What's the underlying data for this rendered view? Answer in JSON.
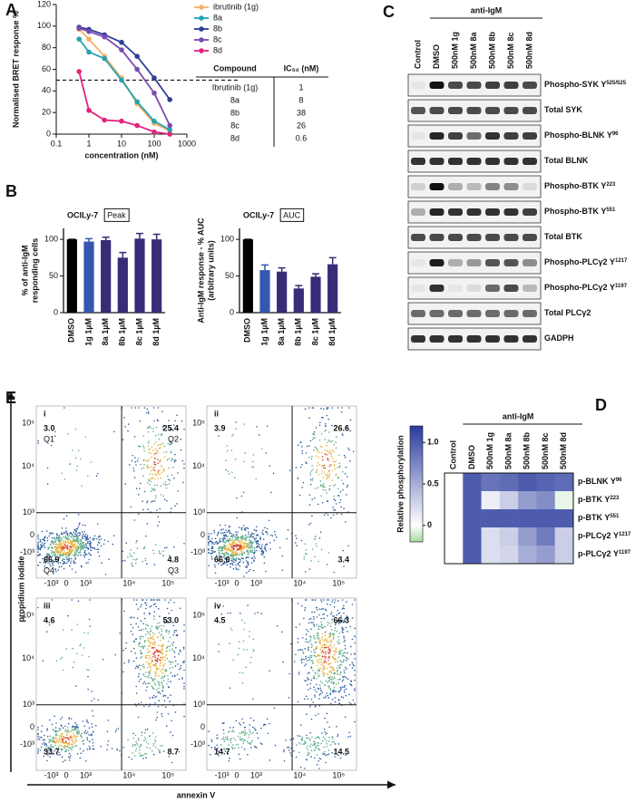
{
  "panel_labels": [
    "A",
    "B",
    "C",
    "D",
    "E"
  ],
  "chart_data": [
    {
      "type": "line",
      "y_label": "Normalised BRET response %",
      "x_label": "concentration (nM)",
      "x_scale": "log",
      "x": [
        0.5,
        1,
        3,
        10,
        30,
        100,
        300
      ],
      "series": [
        {
          "name": "ibrutinib (1g)",
          "color": "#f4b16a",
          "values": [
            97,
            88,
            72,
            52,
            28,
            10,
            3
          ]
        },
        {
          "name": "8a",
          "color": "#22a3b3",
          "values": [
            88,
            76,
            70,
            50,
            30,
            12,
            4
          ]
        },
        {
          "name": "8b",
          "color": "#2f3f95",
          "values": [
            99,
            97,
            92,
            85,
            72,
            52,
            32
          ]
        },
        {
          "name": "8c",
          "color": "#7b4bb1",
          "values": [
            98,
            95,
            90,
            78,
            60,
            38,
            8
          ]
        },
        {
          "name": "8d",
          "color": "#e2247e",
          "values": [
            58,
            22,
            13,
            12,
            8,
            2,
            0
          ]
        }
      ],
      "reference_line": 50,
      "xlim": [
        0.1,
        1000
      ],
      "xticks": [
        0.1,
        1,
        10,
        100,
        1000
      ],
      "ylim": [
        0,
        120
      ],
      "yticks": [
        0,
        20,
        40,
        60,
        80,
        100,
        120
      ]
    },
    {
      "type": "bar",
      "title": "OCILy-7",
      "tag": "Peak",
      "y_label": [
        "% of anti-IgM",
        "responding cells"
      ],
      "categories": [
        "DMSO",
        "1g 1µM",
        "8a 1µM",
        "8b 1µM",
        "8c 1µM",
        "8d 1µM"
      ],
      "values": [
        100,
        97,
        99,
        75,
        101,
        100
      ],
      "errors": [
        0,
        4,
        4,
        7,
        7,
        7
      ],
      "colors": [
        "#000000",
        "#3656b0",
        "#3a2b78",
        "#3a2b78",
        "#3a2b78",
        "#3a2b78"
      ],
      "ylim": [
        0,
        115
      ],
      "yticks": [
        0,
        50,
        100
      ]
    },
    {
      "type": "bar",
      "title": "OCILy-7",
      "tag": "AUC",
      "y_label": [
        "Anti-IgM response - % AUC",
        "(arbitrary units)"
      ],
      "categories": [
        "DMSO",
        "1g 1µM",
        "8a 1µM",
        "8b 1µM",
        "8c 1µM",
        "8d 1µM"
      ],
      "values": [
        100,
        58,
        56,
        33,
        49,
        66
      ],
      "errors": [
        0,
        7,
        5,
        4,
        4,
        9
      ],
      "colors": [
        "#000000",
        "#3656b0",
        "#3a2b78",
        "#3a2b78",
        "#3a2b78",
        "#3a2b78"
      ],
      "ylim": [
        0,
        115
      ],
      "yticks": [
        0,
        50,
        100
      ]
    },
    {
      "type": "heatmap",
      "group_label": "anti-IgM",
      "colorbar_label": "Relative phosphorylation",
      "columns": [
        "Control",
        "DMSO",
        "500nM 1g",
        "500nM 8a",
        "500nM 8b",
        "500nM 8c",
        "500nM 8d"
      ],
      "rows": [
        {
          "label": "p-BLNK Y",
          "superscript": "96"
        },
        {
          "label": "p-BTK Y",
          "superscript": "223"
        },
        {
          "label": "p-BTK Y",
          "superscript": "551"
        },
        {
          "label": "p-PLCγ2 Y",
          "superscript": "1217"
        },
        {
          "label": "p-PLCγ2 Y",
          "superscript": "1197"
        }
      ],
      "values": [
        [
          0,
          1.0,
          0.85,
          0.9,
          1.0,
          0.95,
          0.9
        ],
        [
          0,
          1.0,
          0.1,
          0.3,
          0.6,
          0.7,
          -0.05
        ],
        [
          0,
          1.0,
          1.0,
          1.0,
          1.0,
          1.0,
          1.0
        ],
        [
          0,
          1.0,
          0.2,
          0.3,
          0.6,
          0.8,
          0.3
        ],
        [
          0,
          1.0,
          0.2,
          0.25,
          0.5,
          0.6,
          0.3
        ]
      ],
      "colormap": [
        "#a8d9a0",
        "#ffffff",
        "#2a3b9e"
      ],
      "clim": [
        -0.2,
        1.2
      ],
      "cticks": [
        0,
        0.5,
        {
          "value": 1,
          "label": "1.0"
        }
      ]
    }
  ],
  "table": {
    "header": [
      "Compound",
      "IC₅₀ (nM)"
    ],
    "rows": [
      [
        "Ibrutinib (1g)",
        1
      ],
      [
        "8a",
        8
      ],
      [
        "8b",
        38
      ],
      [
        "8c",
        26
      ],
      [
        "8d",
        0.6
      ]
    ]
  },
  "blot": {
    "group_label": "anti-IgM",
    "lanes": [
      "Control",
      "DMSO",
      "500nM 1g",
      "500nM 8a",
      "500nM 8b",
      "500nM 8c",
      "500nM 8d"
    ],
    "rows": [
      {
        "label": "Phospho-SYK Y",
        "superscript": "525/525"
      },
      {
        "label": "Total SYK"
      },
      {
        "label": "Phospho-BLNK Y",
        "superscript": "96"
      },
      {
        "label": "Total BLNK"
      },
      {
        "label": "Phospho-BTK Y",
        "superscript": "223"
      },
      {
        "label": "Phospho-BTK Y",
        "superscript": "551"
      },
      {
        "label": "Total BTK"
      },
      {
        "label": "Phospho-PLCγ2 Y",
        "superscript": "1217"
      },
      {
        "label": "Phospho-PLCγ2 Y",
        "superscript": "1197"
      },
      {
        "label": "Total PLCγ2"
      },
      {
        "label": "GADPH"
      }
    ]
  },
  "flow": {
    "y_label": "propidium iodide",
    "x_label": "annexin V",
    "y_ticks": [
      "10⁵",
      "10⁴",
      "10³",
      "0",
      "-10³"
    ],
    "x_ticks": [
      "-10³",
      "0",
      "10³",
      "10⁴",
      "10⁵"
    ],
    "plots": [
      {
        "label": "i",
        "quadrants": [
          "3.0",
          "25.4",
          "66.9",
          "4.8"
        ],
        "quadrant_names": [
          "Q1",
          "Q2",
          "Q4",
          "Q3"
        ]
      },
      {
        "label": "ii",
        "quadrants": [
          "3.9",
          "26.6",
          "66.0",
          "3.4"
        ]
      },
      {
        "label": "iii",
        "quadrants": [
          "4.6",
          "53.0",
          "33.7",
          "8.7"
        ]
      },
      {
        "label": "iv",
        "quadrants": [
          "4.5",
          "66.3",
          "14.7",
          "14.5"
        ]
      }
    ]
  }
}
